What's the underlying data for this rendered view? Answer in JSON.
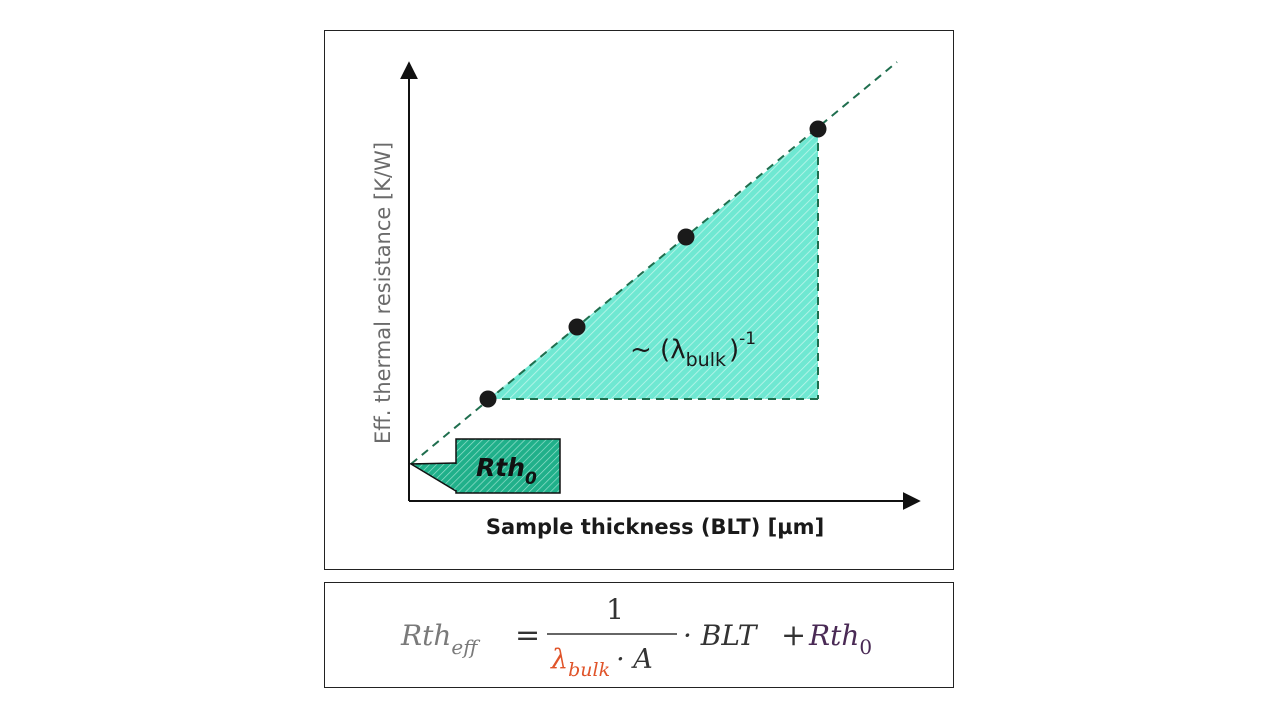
{
  "diagram": {
    "y_axis_label": "Eff. thermal resistance [K/W]",
    "x_axis_label": "Sample thickness (BLT) [µm]",
    "slope_annotation": {
      "prefix": "~ (λ",
      "subscript": "bulk",
      "suffix": ")",
      "superscript": "-1"
    },
    "intercept_label": {
      "main": "Rth",
      "subscript": "0"
    },
    "colors": {
      "dashed_line": "#1f6e4e",
      "triangle_fill": "#6fe8d2",
      "label_box_fill": "#20b08a",
      "point_fill": "#1a1a1a",
      "axis_text": "#6b6b6b"
    }
  },
  "formula": {
    "lhs_main": "Rth",
    "lhs_sub": "eff",
    "equals": "=",
    "numerator": "1",
    "denominator_lambda": "λ",
    "denominator_sub": "bulk",
    "denominator_rest": "· A",
    "dot_blt": "· BLT",
    "plus": "+",
    "rth0_main": "Rth",
    "rth0_sub": "0",
    "colors": {
      "lhs": "#7a7a7a",
      "lambda": "#e0542a",
      "rth0": "#4a2a55",
      "text": "#333333"
    }
  }
}
